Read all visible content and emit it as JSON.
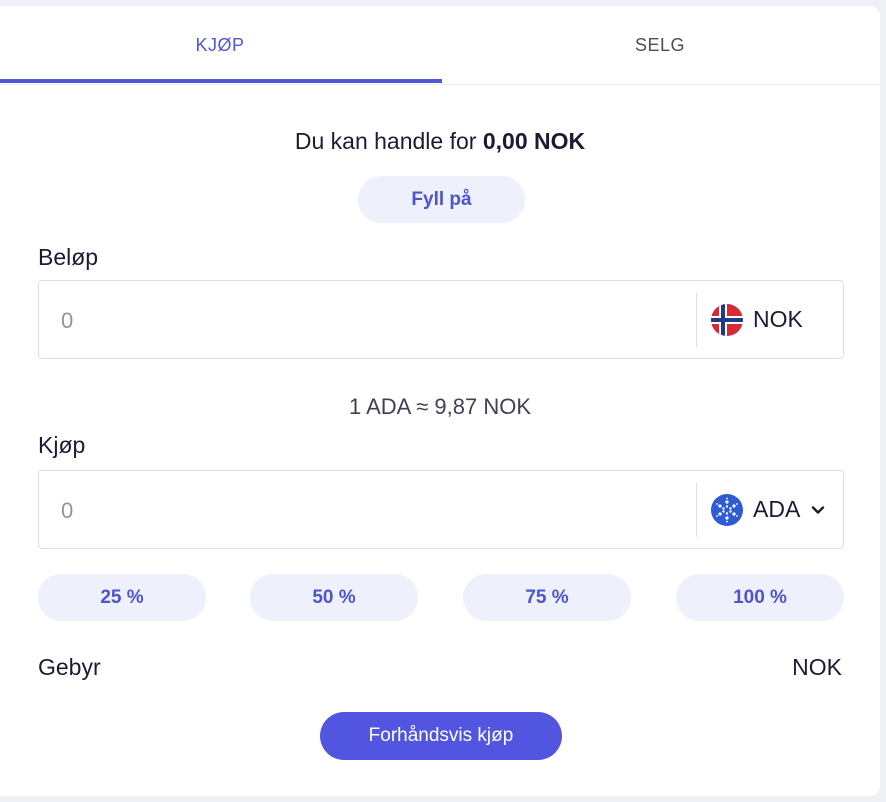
{
  "tabs": {
    "buy": "KJØP",
    "sell": "SELG"
  },
  "balance": {
    "prefix": "Du kan handle for",
    "amount": "0,00 NOK"
  },
  "topup_label": "Fyll på",
  "amount_section": {
    "label": "Beløp",
    "placeholder": "0",
    "currency": "NOK",
    "currency_icon": "norway-flag-icon"
  },
  "rate_text": "1 ADA ≈ 9,87 NOK",
  "buy_section": {
    "label": "Kjøp",
    "placeholder": "0",
    "currency": "ADA",
    "currency_icon": "cardano-icon"
  },
  "percent_buttons": [
    "25 %",
    "50 %",
    "75 %",
    "100 %"
  ],
  "fee": {
    "label": "Gebyr",
    "value": "NOK"
  },
  "preview_button": "Forhåndsvis kjøp",
  "colors": {
    "accent": "#5058d8",
    "button_bg": "#5155e0",
    "chip_bg": "#eef0fc"
  }
}
